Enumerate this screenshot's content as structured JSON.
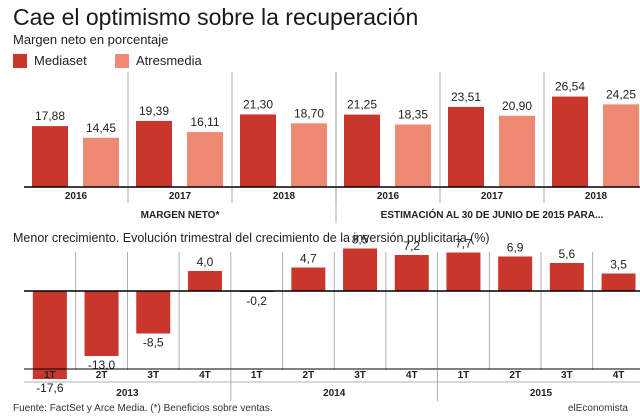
{
  "header": {
    "title": "Cae el optimismo sobre la recuperación",
    "subtitle": "Margen neto en porcentaje"
  },
  "colors": {
    "mediaset": "#c9372c",
    "atresmedia": "#ee8a74",
    "rule": "#000000",
    "divider": "#999999"
  },
  "chart_data": [
    {
      "type": "bar",
      "title": "",
      "ylabel": "Margen neto en porcentaje",
      "legend": {
        "placement": "top-left",
        "entries": [
          "Mediaset",
          "Atresmedia"
        ]
      },
      "ylim": [
        0,
        27
      ],
      "group_labels": [
        "MARGEN NETO*",
        "ESTIMACIÓN AL 30 DE JUNIO DE 2015 PARA..."
      ],
      "groups": [
        {
          "label": "2016",
          "values": [
            17.88,
            14.45
          ],
          "labels": [
            "17,88",
            "14,45"
          ]
        },
        {
          "label": "2017",
          "values": [
            19.39,
            16.11
          ],
          "labels": [
            "19,39",
            "16,11"
          ]
        },
        {
          "label": "2018",
          "values": [
            21.3,
            18.7
          ],
          "labels": [
            "21,30",
            "18,70"
          ]
        },
        {
          "label": "2016",
          "values": [
            21.25,
            18.35
          ],
          "labels": [
            "21,25",
            "18,35"
          ]
        },
        {
          "label": "2017",
          "values": [
            23.51,
            20.9
          ],
          "labels": [
            "23,51",
            "20,90"
          ]
        },
        {
          "label": "2018",
          "values": [
            26.54,
            24.25
          ],
          "labels": [
            "26,54",
            "24,25"
          ]
        }
      ],
      "series": [
        {
          "name": "Mediaset",
          "values": [
            17.88,
            19.39,
            21.3,
            21.25,
            23.51,
            26.54
          ]
        },
        {
          "name": "Atresmedia",
          "values": [
            14.45,
            16.11,
            18.7,
            18.35,
            20.9,
            24.25
          ]
        }
      ],
      "grid": false
    },
    {
      "type": "bar",
      "title": "Menor crecimiento. Evolución trimestral del crecimiento de la inversión publicitaria (%)",
      "ylim": [
        -18.5,
        9
      ],
      "categories": [
        "1T",
        "2T",
        "3T",
        "4T",
        "1T",
        "2T",
        "3T",
        "4T",
        "1T",
        "2T",
        "3T",
        "4T"
      ],
      "years": [
        "2013",
        "2014",
        "2015"
      ],
      "values": [
        -17.6,
        -13.0,
        -8.5,
        4.0,
        -0.2,
        4.7,
        8.5,
        7.2,
        7.7,
        6.9,
        5.6,
        3.5
      ],
      "value_labels": [
        "-17,6",
        "-13,0",
        "-8,5",
        "4,0",
        "-0,2",
        "4,7",
        "8,5",
        "7,2",
        "7,7",
        "6,9",
        "5,6",
        "3,5"
      ],
      "grid": false
    }
  ],
  "footer": {
    "source": "Fuente: FactSet y Arce Media. (*) Beneficios sobre ventas.",
    "credit": "elEconomista"
  }
}
